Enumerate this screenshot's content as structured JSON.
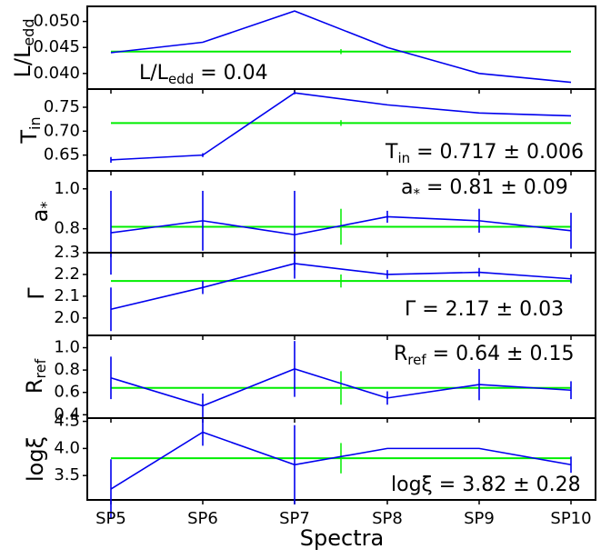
{
  "figure": {
    "xlabel": "Spectra",
    "categories": [
      "SP5",
      "SP6",
      "SP7",
      "SP8",
      "SP9",
      "SP10"
    ]
  },
  "colors": {
    "data": "#0000ee",
    "fit": "#00ee00",
    "axis": "#000000"
  },
  "chart_data": [
    {
      "type": "line",
      "ylabel": "L/Ledd",
      "annotation": "L/Ledd = 0.04",
      "x": [
        "SP5",
        "SP6",
        "SP7",
        "SP8",
        "SP9",
        "SP10"
      ],
      "series": [
        {
          "values": [
            0.044,
            0.046,
            0.052,
            0.045,
            0.04,
            0.0383
          ],
          "errors": [
            0,
            0,
            0,
            0,
            0,
            0
          ]
        }
      ],
      "fit": {
        "value": 0.0442,
        "error": 0
      },
      "ylim": [
        0.037,
        0.0529
      ],
      "yticks": [
        {
          "v": 0.04,
          "label": "0.040"
        },
        {
          "v": 0.045,
          "label": "0.045"
        },
        {
          "v": 0.05,
          "label": "0.050"
        }
      ]
    },
    {
      "type": "line",
      "ylabel": "Tin",
      "annotation": "Tin = 0.717 ± 0.006",
      "x": [
        "SP5",
        "SP6",
        "SP7",
        "SP8",
        "SP9",
        "SP10"
      ],
      "series": [
        {
          "values": [
            0.64,
            0.65,
            0.78,
            0.755,
            0.738,
            0.732
          ],
          "errors": [
            0.006,
            0.004,
            0.003,
            0,
            0,
            0
          ]
        }
      ],
      "fit": {
        "value": 0.717,
        "error": 0.006
      },
      "ylim": [
        0.617,
        0.788
      ],
      "yticks": [
        {
          "v": 0.65,
          "label": "0.65"
        },
        {
          "v": 0.7,
          "label": "0.70"
        },
        {
          "v": 0.75,
          "label": "0.75"
        }
      ]
    },
    {
      "type": "line",
      "ylabel": "a*",
      "annotation": "a* = 0.81 ± 0.09",
      "x": [
        "SP5",
        "SP6",
        "SP7",
        "SP8",
        "SP9",
        "SP10"
      ],
      "series": [
        {
          "values": [
            0.78,
            0.84,
            0.77,
            0.86,
            0.84,
            0.79
          ],
          "errors": [
            0.21,
            0.15,
            0.22,
            0.03,
            0.06,
            0.09
          ]
        }
      ],
      "fit": {
        "value": 0.81,
        "error": 0.09
      },
      "ylim": [
        0.68,
        1.09
      ],
      "yticks": [
        {
          "v": 0.8,
          "label": "0.8"
        },
        {
          "v": 1.0,
          "label": "1.0"
        }
      ]
    },
    {
      "type": "line",
      "ylabel": "Γ",
      "annotation": "Γ = 2.17 ± 0.03",
      "x": [
        "SP5",
        "SP6",
        "SP7",
        "SP8",
        "SP9",
        "SP10"
      ],
      "series": [
        {
          "values": [
            2.04,
            2.14,
            2.25,
            2.2,
            2.21,
            2.18
          ],
          "errors": [
            0.1,
            0.03,
            0.03,
            0.02,
            0.02,
            0.02
          ]
        }
      ],
      "fit": {
        "value": 2.17,
        "error": 0.03
      },
      "ylim": [
        1.92,
        2.3
      ],
      "yticks": [
        {
          "v": 2.0,
          "label": "2.0"
        },
        {
          "v": 2.1,
          "label": "2.1"
        },
        {
          "v": 2.2,
          "label": "2.2"
        },
        {
          "v": 2.3,
          "label": "2.3"
        }
      ]
    },
    {
      "type": "line",
      "ylabel": "Rref",
      "annotation": "Rref = 0.64 ± 0.15",
      "x": [
        "SP5",
        "SP6",
        "SP7",
        "SP8",
        "SP9",
        "SP10"
      ],
      "series": [
        {
          "values": [
            0.73,
            0.48,
            0.81,
            0.55,
            0.67,
            0.62
          ],
          "errors": [
            0.19,
            0.11,
            0.25,
            0.06,
            0.14,
            0.08
          ]
        }
      ],
      "fit": {
        "value": 0.64,
        "error": 0.15
      },
      "ylim": [
        0.37,
        1.11
      ],
      "yticks": [
        {
          "v": 0.4,
          "label": "0.4"
        },
        {
          "v": 0.6,
          "label": "0.6"
        },
        {
          "v": 0.8,
          "label": "0.8"
        },
        {
          "v": 1.0,
          "label": "1.0"
        }
      ]
    },
    {
      "type": "line",
      "ylabel": "logξ",
      "annotation": "logξ = 3.82 ± 0.28",
      "x": [
        "SP5",
        "SP6",
        "SP7",
        "SP8",
        "SP9",
        "SP10"
      ],
      "series": [
        {
          "values": [
            3.25,
            4.3,
            3.7,
            4.0,
            4.0,
            3.7
          ],
          "errors": [
            0.55,
            0.25,
            0.73,
            0,
            0,
            0.15
          ]
        }
      ],
      "fit": {
        "value": 3.82,
        "error": 0.28
      },
      "ylim": [
        3.05,
        4.56
      ],
      "yticks": [
        {
          "v": 3.5,
          "label": "3.5"
        },
        {
          "v": 4.0,
          "label": "4.0"
        },
        {
          "v": 4.5,
          "label": "4.5"
        }
      ]
    }
  ]
}
